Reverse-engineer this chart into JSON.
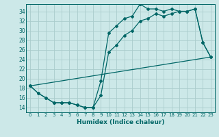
{
  "xlabel": "Humidex (Indice chaleur)",
  "background_color": "#cce8e8",
  "grid_color": "#aacccc",
  "line_color": "#006666",
  "xlim": [
    -0.5,
    23.5
  ],
  "ylim": [
    13,
    35.5
  ],
  "yticks": [
    14,
    16,
    18,
    20,
    22,
    24,
    26,
    28,
    30,
    32,
    34
  ],
  "xticks": [
    0,
    1,
    2,
    3,
    4,
    5,
    6,
    7,
    8,
    9,
    10,
    11,
    12,
    13,
    14,
    15,
    16,
    17,
    18,
    19,
    20,
    21,
    22,
    23
  ],
  "series1_x": [
    0,
    1,
    2,
    3,
    4,
    5,
    6,
    7,
    8,
    9,
    10,
    11,
    12,
    13,
    14,
    15,
    16,
    17,
    18,
    19,
    20,
    21,
    22,
    23
  ],
  "series1_y": [
    18.5,
    17,
    16,
    15,
    15,
    15,
    14.5,
    14,
    14,
    19.5,
    29.5,
    31,
    32.5,
    33,
    35.5,
    34.5,
    34.5,
    34,
    34.5,
    34,
    34,
    34.5,
    27.5,
    24.5
  ],
  "series2_x": [
    0,
    1,
    2,
    3,
    4,
    5,
    6,
    7,
    8,
    9,
    10,
    11,
    12,
    13,
    14,
    15,
    16,
    17,
    18,
    19,
    20,
    21,
    22,
    23
  ],
  "series2_y": [
    18.5,
    17,
    16,
    15,
    15,
    15,
    14.5,
    14,
    14,
    16.5,
    25.5,
    27,
    29,
    30,
    32,
    32.5,
    33.5,
    33,
    33.5,
    34,
    34,
    34.5,
    27.5,
    24.5
  ],
  "series3_x": [
    0,
    23
  ],
  "series3_y": [
    18.5,
    24.5
  ]
}
